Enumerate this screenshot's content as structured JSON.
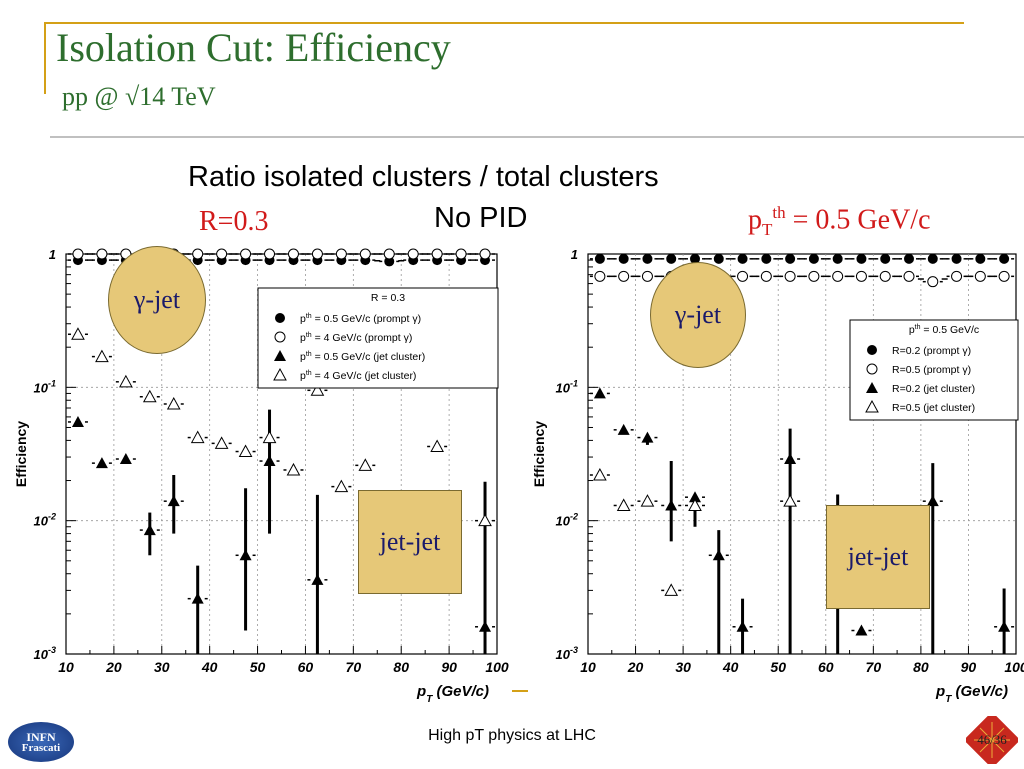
{
  "slide": {
    "title": "Isolation Cut: Efficiency",
    "subtitle": "pp @ √14 TeV",
    "heading_line1": "Ratio isolated clusters / total clusters",
    "heading_line2": "No PID",
    "left_label": "R=0.3",
    "right_label_prefix": "p",
    "right_label_sub": "T",
    "right_label_sup": "th",
    "right_label_value": " = 0.5 GeV/c",
    "footer": "High pT physics at LHC",
    "page_number": "46/36",
    "logo_text_1": "INFN",
    "logo_text_2": "Frascati",
    "colors": {
      "title": "#2e6e2e",
      "accent_line": "#d4a017",
      "red_label": "#d11a1a",
      "callout_fill": "#e6c878",
      "callout_border": "#7a6a30"
    }
  },
  "chart_data": [
    {
      "type": "scatter",
      "yscale": "log",
      "ylim": [
        0.001,
        1
      ],
      "xlim": [
        10,
        100
      ],
      "xlabel": "p_T (GeV/c)",
      "ylabel": "Efficiency",
      "x_ticks": [
        "10",
        "20",
        "30",
        "40",
        "50",
        "60",
        "70",
        "80",
        "90",
        "100"
      ],
      "y_ticks": [
        "1",
        "10^-1",
        "10^-2",
        "10^-3"
      ],
      "legend_title": "R = 0.3",
      "legend_position": "upper-right",
      "annotations": [
        "γ-jet",
        "jet-jet"
      ],
      "series": [
        {
          "name": "p_T^th = 0.5 GeV/c (prompt γ)",
          "marker": "filled-circle",
          "x": [
            12.5,
            17.5,
            22.5,
            27.5,
            32.5,
            37.5,
            42.5,
            47.5,
            52.5,
            57.5,
            62.5,
            67.5,
            72.5,
            77.5,
            82.5,
            87.5,
            92.5,
            97.5
          ],
          "y": [
            0.9,
            0.9,
            0.9,
            0.9,
            0.9,
            0.9,
            0.9,
            0.9,
            0.9,
            0.9,
            0.9,
            0.9,
            0.9,
            0.88,
            0.9,
            0.9,
            0.9,
            0.9
          ]
        },
        {
          "name": "p_T^th = 4 GeV/c (prompt γ)",
          "marker": "open-circle",
          "x": [
            12.5,
            17.5,
            22.5,
            27.5,
            32.5,
            37.5,
            42.5,
            47.5,
            52.5,
            57.5,
            62.5,
            67.5,
            72.5,
            77.5,
            82.5,
            87.5,
            92.5,
            97.5
          ],
          "y": [
            1.0,
            1.0,
            1.0,
            1.0,
            1.0,
            1.0,
            1.0,
            1.0,
            1.0,
            1.0,
            1.0,
            1.0,
            1.0,
            1.0,
            1.0,
            1.0,
            1.0,
            1.0
          ]
        },
        {
          "name": "p_T^th = 0.5 GeV/c (jet cluster)",
          "marker": "filled-triangle",
          "x": [
            12.5,
            17.5,
            22.5,
            27.5,
            32.5,
            37.5,
            47.5,
            52.5,
            62.5,
            97.5
          ],
          "y": [
            0.055,
            0.027,
            0.029,
            0.0085,
            0.014,
            0.0026,
            0.0055,
            0.028,
            0.0036,
            0.0016
          ],
          "err_low": [
            0,
            0,
            0,
            0.003,
            0.006,
            0.0025,
            0.004,
            0.02,
            0.0035,
            0.0015
          ],
          "err_high": [
            0,
            0,
            0,
            0.003,
            0.008,
            0.002,
            0.012,
            0.04,
            0.012,
            0.018
          ]
        },
        {
          "name": "p_T^th = 4 GeV/c (jet cluster)",
          "marker": "open-triangle",
          "x": [
            12.5,
            17.5,
            22.5,
            27.5,
            32.5,
            37.5,
            42.5,
            47.5,
            52.5,
            57.5,
            62.5,
            67.5,
            72.5,
            77.5,
            82.5,
            87.5,
            97.5
          ],
          "y": [
            0.25,
            0.17,
            0.11,
            0.085,
            0.075,
            0.042,
            0.038,
            0.033,
            0.042,
            0.024,
            0.095,
            0.018,
            0.026,
            0.015,
            0.01,
            0.036,
            0.01
          ]
        }
      ]
    },
    {
      "type": "scatter",
      "yscale": "log",
      "ylim": [
        0.001,
        1
      ],
      "xlim": [
        10,
        100
      ],
      "xlabel": "p_T (GeV/c)",
      "ylabel": "Efficiency",
      "x_ticks": [
        "10",
        "20",
        "30",
        "40",
        "50",
        "60",
        "70",
        "80",
        "90",
        "100"
      ],
      "y_ticks": [
        "1",
        "10^-1",
        "10^-2",
        "10^-3"
      ],
      "legend_title": "p_T^th = 0.5 GeV/c",
      "legend_position": "right",
      "annotations": [
        "γ-jet",
        "jet-jet"
      ],
      "series": [
        {
          "name": "R=0.2 (prompt γ)",
          "marker": "filled-circle",
          "x": [
            12.5,
            17.5,
            22.5,
            27.5,
            32.5,
            37.5,
            42.5,
            47.5,
            52.5,
            57.5,
            62.5,
            67.5,
            72.5,
            77.5,
            82.5,
            87.5,
            92.5,
            97.5
          ],
          "y": [
            0.92,
            0.92,
            0.92,
            0.92,
            0.92,
            0.92,
            0.92,
            0.92,
            0.92,
            0.92,
            0.92,
            0.92,
            0.92,
            0.92,
            0.92,
            0.92,
            0.92,
            0.92
          ]
        },
        {
          "name": "R=0.5 (prompt γ)",
          "marker": "open-circle",
          "x": [
            12.5,
            17.5,
            22.5,
            27.5,
            32.5,
            37.5,
            42.5,
            47.5,
            52.5,
            57.5,
            62.5,
            67.5,
            72.5,
            77.5,
            82.5,
            87.5,
            92.5,
            97.5
          ],
          "y": [
            0.68,
            0.68,
            0.68,
            0.68,
            0.68,
            0.68,
            0.68,
            0.68,
            0.68,
            0.68,
            0.68,
            0.68,
            0.68,
            0.68,
            0.62,
            0.68,
            0.68,
            0.68
          ]
        },
        {
          "name": "R=0.2 (jet cluster)",
          "marker": "filled-triangle",
          "x": [
            12.5,
            17.5,
            22.5,
            27.5,
            32.5,
            37.5,
            42.5,
            52.5,
            62.5,
            67.5,
            82.5,
            97.5
          ],
          "y": [
            0.09,
            0.048,
            0.042,
            0.013,
            0.015,
            0.0055,
            0.0016,
            0.029,
            0.0037,
            0.0015,
            0.014,
            0.0016
          ],
          "err_low": [
            0,
            0,
            0.005,
            0.006,
            0.006,
            0.0054,
            0.0015,
            0.028,
            0.0036,
            0,
            0.0139,
            0.0015
          ],
          "err_high": [
            0,
            0,
            0,
            0.015,
            0.0,
            0.003,
            0.001,
            0.02,
            0.012,
            0,
            0.013,
            0.0015
          ]
        },
        {
          "name": "R=0.5 (jet cluster)",
          "marker": "open-triangle",
          "x": [
            12.5,
            17.5,
            22.5,
            27.5,
            32.5,
            52.5
          ],
          "y": [
            0.022,
            0.013,
            0.014,
            0.003,
            0.013,
            0.014
          ]
        }
      ]
    }
  ]
}
